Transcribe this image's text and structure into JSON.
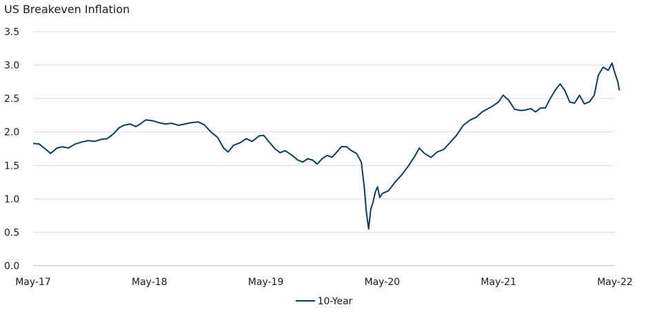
{
  "chart_data": {
    "type": "line",
    "title": "US Breakeven Inflation",
    "xlabel": "",
    "ylabel": "",
    "x_ticks": [
      "May-17",
      "May-18",
      "May-19",
      "May-20",
      "May-21",
      "May-22"
    ],
    "y_ticks": [
      "0.0",
      "0.5",
      "1.0",
      "1.5",
      "2.0",
      "2.5",
      "3.0",
      "3.5"
    ],
    "ylim": [
      0,
      3.5
    ],
    "xlim": [
      "2017-05",
      "2022-05"
    ],
    "grid": true,
    "legend_position": "bottom",
    "series": [
      {
        "name": "10-Year",
        "color": "#0d3b5c",
        "points": [
          [
            "2017-05-01",
            1.83
          ],
          [
            "2017-05-20",
            1.82
          ],
          [
            "2017-06-10",
            1.74
          ],
          [
            "2017-06-25",
            1.68
          ],
          [
            "2017-07-15",
            1.76
          ],
          [
            "2017-08-01",
            1.78
          ],
          [
            "2017-08-20",
            1.76
          ],
          [
            "2017-09-10",
            1.82
          ],
          [
            "2017-10-01",
            1.85
          ],
          [
            "2017-10-20",
            1.87
          ],
          [
            "2017-11-10",
            1.86
          ],
          [
            "2017-12-01",
            1.89
          ],
          [
            "2017-12-20",
            1.9
          ],
          [
            "2018-01-10",
            1.98
          ],
          [
            "2018-01-25",
            2.06
          ],
          [
            "2018-02-10",
            2.1
          ],
          [
            "2018-03-01",
            2.12
          ],
          [
            "2018-03-20",
            2.08
          ],
          [
            "2018-04-05",
            2.13
          ],
          [
            "2018-04-20",
            2.18
          ],
          [
            "2018-05-10",
            2.17
          ],
          [
            "2018-05-30",
            2.14
          ],
          [
            "2018-06-20",
            2.12
          ],
          [
            "2018-07-10",
            2.13
          ],
          [
            "2018-08-01",
            2.1
          ],
          [
            "2018-08-20",
            2.12
          ],
          [
            "2018-09-10",
            2.14
          ],
          [
            "2018-10-01",
            2.15
          ],
          [
            "2018-10-20",
            2.11
          ],
          [
            "2018-11-10",
            2.0
          ],
          [
            "2018-12-01",
            1.92
          ],
          [
            "2018-12-20",
            1.76
          ],
          [
            "2019-01-03",
            1.7
          ],
          [
            "2019-01-20",
            1.8
          ],
          [
            "2019-02-10",
            1.84
          ],
          [
            "2019-03-01",
            1.9
          ],
          [
            "2019-03-20",
            1.86
          ],
          [
            "2019-04-10",
            1.94
          ],
          [
            "2019-04-25",
            1.95
          ],
          [
            "2019-05-10",
            1.86
          ],
          [
            "2019-05-30",
            1.75
          ],
          [
            "2019-06-15",
            1.69
          ],
          [
            "2019-07-01",
            1.72
          ],
          [
            "2019-07-20",
            1.66
          ],
          [
            "2019-08-10",
            1.58
          ],
          [
            "2019-08-25",
            1.55
          ],
          [
            "2019-09-10",
            1.6
          ],
          [
            "2019-09-25",
            1.58
          ],
          [
            "2019-10-10",
            1.52
          ],
          [
            "2019-10-25",
            1.6
          ],
          [
            "2019-11-10",
            1.65
          ],
          [
            "2019-11-25",
            1.62
          ],
          [
            "2019-12-10",
            1.7
          ],
          [
            "2019-12-25",
            1.78
          ],
          [
            "2020-01-10",
            1.78
          ],
          [
            "2020-01-25",
            1.72
          ],
          [
            "2020-02-10",
            1.68
          ],
          [
            "2020-02-25",
            1.55
          ],
          [
            "2020-03-05",
            1.2
          ],
          [
            "2020-03-12",
            0.8
          ],
          [
            "2020-03-19",
            0.55
          ],
          [
            "2020-03-26",
            0.85
          ],
          [
            "2020-04-02",
            0.95
          ],
          [
            "2020-04-09",
            1.1
          ],
          [
            "2020-04-16",
            1.18
          ],
          [
            "2020-04-23",
            1.02
          ],
          [
            "2020-05-01",
            1.08
          ],
          [
            "2020-05-20",
            1.12
          ],
          [
            "2020-06-10",
            1.25
          ],
          [
            "2020-07-01",
            1.36
          ],
          [
            "2020-07-20",
            1.48
          ],
          [
            "2020-08-10",
            1.63
          ],
          [
            "2020-08-25",
            1.76
          ],
          [
            "2020-09-10",
            1.68
          ],
          [
            "2020-10-01",
            1.62
          ],
          [
            "2020-10-20",
            1.7
          ],
          [
            "2020-11-10",
            1.74
          ],
          [
            "2020-12-01",
            1.85
          ],
          [
            "2020-12-20",
            1.95
          ],
          [
            "2021-01-10",
            2.1
          ],
          [
            "2021-02-01",
            2.18
          ],
          [
            "2021-02-20",
            2.22
          ],
          [
            "2021-03-10",
            2.3
          ],
          [
            "2021-03-25",
            2.34
          ],
          [
            "2021-04-10",
            2.38
          ],
          [
            "2021-05-01",
            2.45
          ],
          [
            "2021-05-15",
            2.55
          ],
          [
            "2021-06-01",
            2.48
          ],
          [
            "2021-06-20",
            2.34
          ],
          [
            "2021-07-10",
            2.32
          ],
          [
            "2021-07-25",
            2.33
          ],
          [
            "2021-08-10",
            2.35
          ],
          [
            "2021-08-25",
            2.3
          ],
          [
            "2021-09-10",
            2.36
          ],
          [
            "2021-09-25",
            2.36
          ],
          [
            "2021-10-10",
            2.5
          ],
          [
            "2021-10-25",
            2.62
          ],
          [
            "2021-11-10",
            2.72
          ],
          [
            "2021-11-25",
            2.62
          ],
          [
            "2021-12-10",
            2.45
          ],
          [
            "2021-12-25",
            2.43
          ],
          [
            "2022-01-10",
            2.55
          ],
          [
            "2022-01-25",
            2.42
          ],
          [
            "2022-02-10",
            2.45
          ],
          [
            "2022-02-25",
            2.55
          ],
          [
            "2022-03-10",
            2.85
          ],
          [
            "2022-03-25",
            2.97
          ],
          [
            "2022-04-10",
            2.92
          ],
          [
            "2022-04-22",
            3.03
          ],
          [
            "2022-05-01",
            2.88
          ],
          [
            "2022-05-10",
            2.75
          ],
          [
            "2022-05-15",
            2.62
          ]
        ]
      }
    ]
  }
}
